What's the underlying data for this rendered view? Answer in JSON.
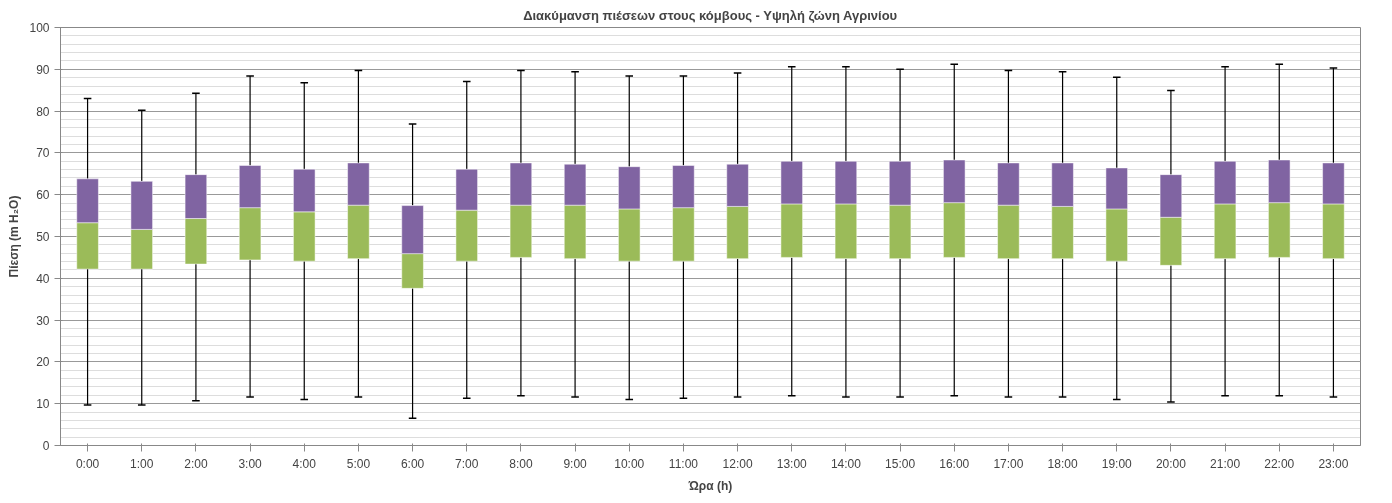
{
  "chart_data": {
    "type": "box",
    "title": "Διακύμανση πιέσεων στους κόμβους - Υψηλή ζώνη Αγρινίου",
    "xlabel": "Ώρα (h)",
    "ylabel": "Πίεση (m H₂O)",
    "categories": [
      "0:00",
      "1:00",
      "2:00",
      "3:00",
      "4:00",
      "5:00",
      "6:00",
      "7:00",
      "8:00",
      "9:00",
      "10:00",
      "11:00",
      "12:00",
      "13:00",
      "14:00",
      "15:00",
      "16:00",
      "17:00",
      "18:00",
      "19:00",
      "20:00",
      "21:00",
      "22:00",
      "23:00"
    ],
    "series": [
      {
        "colors": [
          [
            "#9bbb59",
            "#8064a2"
          ],
          [
            "#9bbb59",
            "#8064a2"
          ],
          [
            "#9bbb59",
            "#8064a2"
          ],
          [
            "#9bbb59",
            "#8064a2"
          ],
          [
            "#9bbb59",
            "#8064a2"
          ],
          [
            "#9bbb59",
            "#8064a2"
          ],
          [
            "#9bbb59",
            "#8064a2"
          ],
          [
            "#9bbb59",
            "#8064a2"
          ],
          [
            "#9bbb59",
            "#8064a2"
          ],
          [
            "#9bbb59",
            "#8064a2"
          ],
          [
            "#9bbb59",
            "#8064a2"
          ],
          [
            "#9bbb59",
            "#8064a2"
          ],
          [
            "#9bbb59",
            "#8064a2"
          ],
          [
            "#9bbb59",
            "#8064a2"
          ],
          [
            "#9bbb59",
            "#8064a2"
          ],
          [
            "#9bbb59",
            "#8064a2"
          ],
          [
            "#9bbb59",
            "#8064a2"
          ],
          [
            "#9bbb59",
            "#8064a2"
          ],
          [
            "#9bbb59",
            "#8064a2"
          ],
          [
            "#9bbb59",
            "#8064a2"
          ],
          [
            "#9bbb59",
            "#8064a2"
          ],
          [
            "#9bbb59",
            "#8064a2"
          ],
          [
            "#9bbb59",
            "#8064a2"
          ],
          [
            "#9bbb59",
            "#8064a2"
          ]
        ],
        "boxes": [
          {
            "low": 9.7,
            "q1": 42.2,
            "median": 53.3,
            "q3": 63.8,
            "high": 83.0
          },
          {
            "low": 9.7,
            "q1": 42.2,
            "median": 51.7,
            "q3": 63.2,
            "high": 80.2
          },
          {
            "low": 10.7,
            "q1": 43.4,
            "median": 54.3,
            "q3": 64.8,
            "high": 84.3
          },
          {
            "low": 11.6,
            "q1": 44.4,
            "median": 56.9,
            "q3": 67.0,
            "high": 88.4
          },
          {
            "low": 11.0,
            "q1": 44.1,
            "median": 55.9,
            "q3": 66.1,
            "high": 86.8
          },
          {
            "low": 11.6,
            "q1": 44.7,
            "median": 57.5,
            "q3": 67.6,
            "high": 89.7
          },
          {
            "low": 6.5,
            "q1": 37.6,
            "median": 45.9,
            "q3": 57.4,
            "high": 76.9
          },
          {
            "low": 11.3,
            "q1": 44.1,
            "median": 56.3,
            "q3": 66.1,
            "high": 87.1
          },
          {
            "low": 11.9,
            "q1": 45.0,
            "median": 57.5,
            "q3": 67.6,
            "high": 89.7
          },
          {
            "low": 11.6,
            "q1": 44.7,
            "median": 57.5,
            "q3": 67.3,
            "high": 89.4
          },
          {
            "low": 11.0,
            "q1": 44.1,
            "median": 56.6,
            "q3": 66.7,
            "high": 88.4
          },
          {
            "low": 11.3,
            "q1": 44.1,
            "median": 56.9,
            "q3": 67.0,
            "high": 88.4
          },
          {
            "low": 11.6,
            "q1": 44.7,
            "median": 57.2,
            "q3": 67.3,
            "high": 89.1
          },
          {
            "low": 11.9,
            "q1": 45.0,
            "median": 57.8,
            "q3": 68.0,
            "high": 90.6
          },
          {
            "low": 11.6,
            "q1": 44.7,
            "median": 57.8,
            "q3": 68.0,
            "high": 90.6
          },
          {
            "low": 11.6,
            "q1": 44.7,
            "median": 57.5,
            "q3": 68.0,
            "high": 90.0
          },
          {
            "low": 11.9,
            "q1": 45.0,
            "median": 58.1,
            "q3": 68.3,
            "high": 91.2
          },
          {
            "low": 11.6,
            "q1": 44.7,
            "median": 57.5,
            "q3": 67.6,
            "high": 89.7
          },
          {
            "low": 11.6,
            "q1": 44.7,
            "median": 57.2,
            "q3": 67.6,
            "high": 89.4
          },
          {
            "low": 11.0,
            "q1": 44.1,
            "median": 56.6,
            "q3": 66.4,
            "high": 88.1
          },
          {
            "low": 10.4,
            "q1": 43.1,
            "median": 54.6,
            "q3": 64.8,
            "high": 84.9
          },
          {
            "low": 11.9,
            "q1": 44.7,
            "median": 57.8,
            "q3": 68.0,
            "high": 90.6
          },
          {
            "low": 11.9,
            "q1": 45.0,
            "median": 58.1,
            "q3": 68.3,
            "high": 91.2
          },
          {
            "low": 11.6,
            "q1": 44.7,
            "median": 57.8,
            "q3": 67.6,
            "high": 90.3
          }
        ]
      }
    ],
    "ylim": [
      0,
      100
    ],
    "yticks": [
      0,
      10,
      20,
      30,
      40,
      50,
      60,
      70,
      80,
      90,
      100
    ],
    "grid": "y"
  }
}
